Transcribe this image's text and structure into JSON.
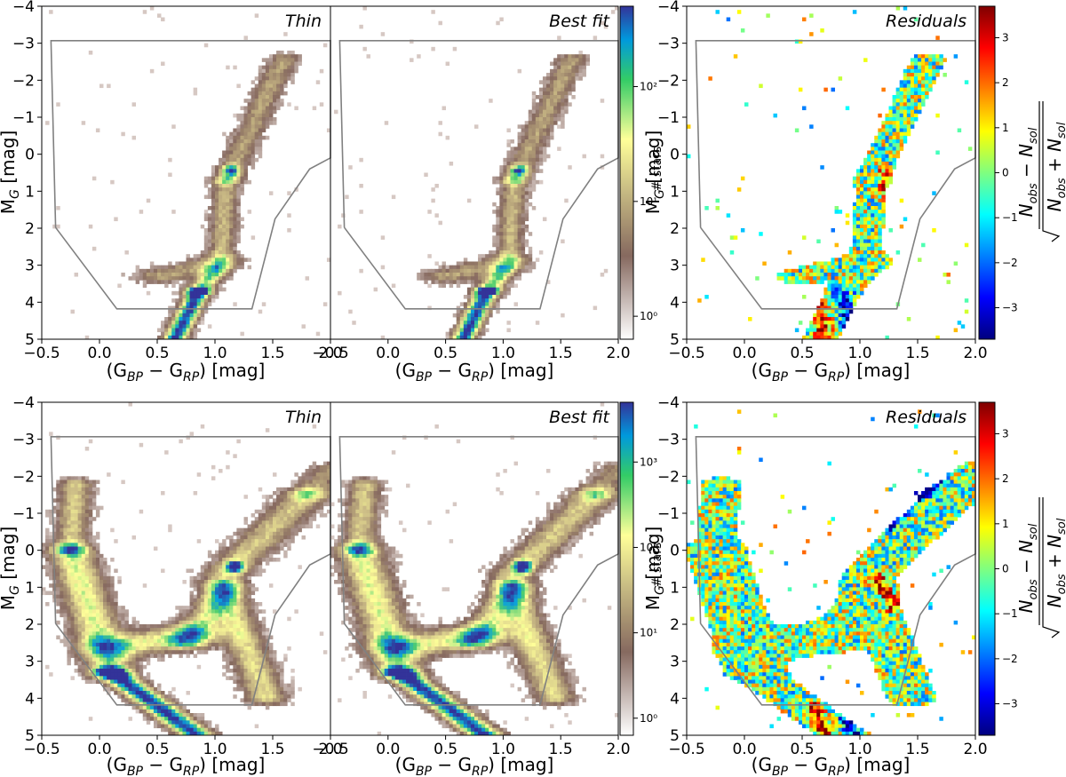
{
  "figure": {
    "rows": [
      {
        "panels": [
          {
            "title": "Thin",
            "kind": "density",
            "seed": 11
          },
          {
            "title": "Best fit",
            "kind": "density",
            "seed": 23
          },
          {
            "title": "Residuals",
            "kind": "residual",
            "seed": 37
          }
        ],
        "density_colorbar": {
          "label": "# stars",
          "ticks": [
            "10⁰",
            "10¹",
            "10²"
          ],
          "log_max": 2.7
        },
        "residual_colorbar": {
          "ticks": [
            "3",
            "2",
            "1",
            "0",
            "−1",
            "−2",
            "−3"
          ],
          "numerator": "N_obs − N_sol",
          "denominator": "N_obs + N_sol"
        },
        "population": "thin"
      },
      {
        "panels": [
          {
            "title": "Thin",
            "kind": "density",
            "seed": 51
          },
          {
            "title": "Best fit",
            "kind": "density",
            "seed": 67
          },
          {
            "title": "Residuals",
            "kind": "residual",
            "seed": 79
          }
        ],
        "density_colorbar": {
          "label": "# stars",
          "ticks": [
            "10⁰",
            "10¹",
            "10²",
            "10³"
          ],
          "log_max": 3.7
        },
        "residual_colorbar": {
          "ticks": [
            "3",
            "2",
            "1",
            "0",
            "−1",
            "−2",
            "−3"
          ],
          "numerator": "N_obs − N_sol",
          "denominator": "N_obs + N_sol"
        },
        "population": "full"
      }
    ]
  },
  "chart_data": {
    "type": "heatmap",
    "xlabel": "(G_BP − G_RP) [mag]",
    "ylabel": "M_G [mag]",
    "xlim": [
      -0.5,
      2.0
    ],
    "ylim": [
      5,
      -4
    ],
    "xticks": [
      -0.5,
      0.0,
      0.5,
      1.0,
      1.5,
      2.0
    ],
    "xtick_labels": [
      "−0.5",
      "0.0",
      "0.5",
      "1.0",
      "1.5",
      "2.0"
    ],
    "yticks": [
      -4,
      -3,
      -2,
      -1,
      0,
      1,
      2,
      3,
      4,
      5
    ],
    "ytick_labels": [
      "−4",
      "−3",
      "−2",
      "−1",
      "0",
      "1",
      "2",
      "3",
      "4",
      "5"
    ],
    "selection_polygon": [
      [
        -0.42,
        -3.07
      ],
      [
        2.0,
        -3.07
      ],
      [
        2.0,
        0.1
      ],
      [
        1.82,
        0.4
      ],
      [
        1.52,
        1.75
      ],
      [
        1.32,
        4.18
      ],
      [
        0.15,
        4.18
      ],
      [
        -0.38,
        1.98
      ]
    ],
    "colormaps": {
      "density": "terrain_r",
      "residual": "jet"
    }
  }
}
